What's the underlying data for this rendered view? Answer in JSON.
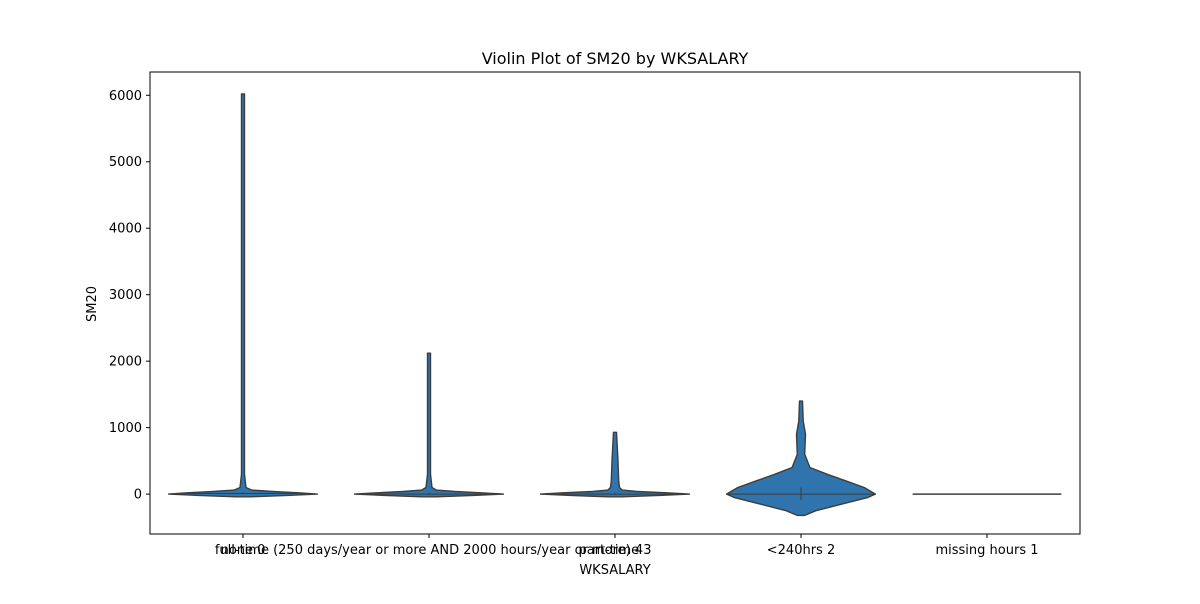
{
  "chart_data": {
    "type": "violin",
    "title": "Violin Plot of SM20 by WKSALARY",
    "xlabel": "WKSALARY",
    "ylabel": "SM20",
    "ylim": [
      -600,
      6350
    ],
    "yticks": [
      0,
      1000,
      2000,
      3000,
      4000,
      5000,
      6000
    ],
    "categories": [
      "full-time (250 days/year or more AND 2000 hours/year or more) 4",
      "part-time 3",
      "<240hrs 2",
      "missing hours 1",
      "none 0"
    ],
    "x_tick_labels": [
      "none 0",
      "full-time (250 days/year or more AND 2000 hours/year or more) 4",
      "part-time 3",
      "<240hrs 2",
      "missing hours 1"
    ],
    "violins": [
      {
        "min": -40,
        "max": 6020,
        "median": 10,
        "q1": 0,
        "q3": 30,
        "profile": [
          [
            -40,
            0.1
          ],
          [
            -20,
            0.6
          ],
          [
            0,
            1.0
          ],
          [
            20,
            0.75
          ],
          [
            40,
            0.4
          ],
          [
            60,
            0.12
          ],
          [
            100,
            0.04
          ],
          [
            300,
            0.02
          ],
          [
            6020,
            0.02
          ]
        ]
      },
      {
        "min": -40,
        "max": 2120,
        "median": 0,
        "q1": -10,
        "q3": 20,
        "profile": [
          [
            -40,
            0.1
          ],
          [
            -20,
            0.6
          ],
          [
            0,
            1.0
          ],
          [
            20,
            0.7
          ],
          [
            40,
            0.35
          ],
          [
            60,
            0.1
          ],
          [
            100,
            0.04
          ],
          [
            300,
            0.02
          ],
          [
            2120,
            0.02
          ]
        ]
      },
      {
        "min": -40,
        "max": 930,
        "median": 0,
        "q1": -10,
        "q3": 20,
        "profile": [
          [
            -40,
            0.1
          ],
          [
            -20,
            0.6
          ],
          [
            0,
            1.0
          ],
          [
            20,
            0.7
          ],
          [
            40,
            0.3
          ],
          [
            60,
            0.1
          ],
          [
            100,
            0.06
          ],
          [
            200,
            0.05
          ],
          [
            500,
            0.04
          ],
          [
            930,
            0.02
          ]
        ]
      },
      {
        "min": -320,
        "max": 1400,
        "median": 0,
        "q1": -90,
        "q3": 100,
        "profile": [
          [
            -320,
            0.05
          ],
          [
            -250,
            0.2
          ],
          [
            -150,
            0.55
          ],
          [
            -50,
            0.9
          ],
          [
            0,
            1.0
          ],
          [
            100,
            0.85
          ],
          [
            200,
            0.6
          ],
          [
            300,
            0.35
          ],
          [
            400,
            0.12
          ],
          [
            600,
            0.05
          ],
          [
            900,
            0.06
          ],
          [
            1100,
            0.03
          ],
          [
            1400,
            0.02
          ]
        ]
      },
      {
        "min": 0,
        "max": 0,
        "median": 0,
        "q1": 0,
        "q3": 0,
        "profile": [
          [
            0,
            1.0
          ]
        ]
      }
    ],
    "colors": {
      "violin_fill": "#2f74ad",
      "outline": "#3d3d3d",
      "axes": "#000000"
    },
    "grid": false,
    "legend": "none"
  }
}
